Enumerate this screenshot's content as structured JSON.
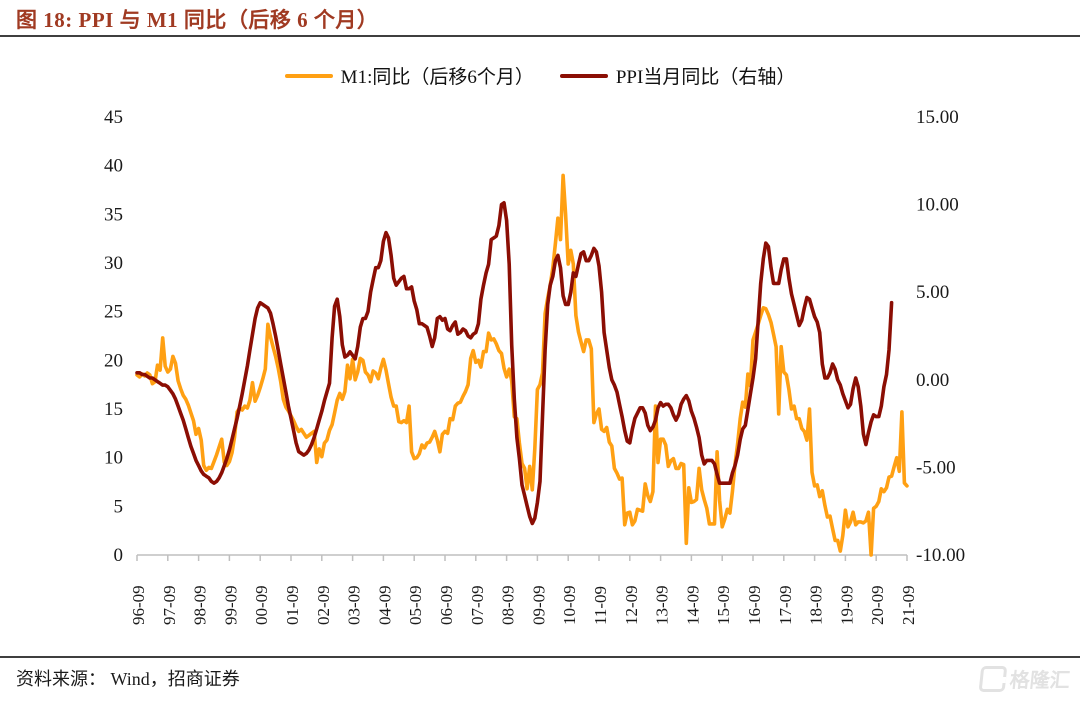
{
  "header": {
    "title": "图 18:  PPI 与 M1 同比（后移 6 个月）"
  },
  "footer": {
    "source": "资料来源： Wind，招商证券",
    "logo_text": "格隆汇"
  },
  "chart_data": {
    "type": "line",
    "title": "PPI 与 M1 同比（后移 6 个月）",
    "x_start": "1996-09",
    "x_step": "month",
    "grid": false,
    "legend_position": "top-center",
    "x_ticks": [
      "96-09",
      "97-09",
      "98-09",
      "99-09",
      "00-09",
      "01-09",
      "02-09",
      "03-09",
      "04-09",
      "05-09",
      "06-09",
      "07-09",
      "08-09",
      "09-09",
      "10-09",
      "11-09",
      "12-09",
      "13-09",
      "14-09",
      "15-09",
      "16-09",
      "17-09",
      "18-09",
      "19-09",
      "20-09",
      "21-09"
    ],
    "left_axis": {
      "min": 0,
      "max": 45,
      "tick_labels": [
        "45",
        "40",
        "35",
        "30",
        "25",
        "20",
        "15",
        "10",
        "5",
        "0"
      ]
    },
    "right_axis": {
      "min": -10,
      "max": 15,
      "tick_labels": [
        "15.00",
        "10.00",
        "5.00",
        "0.00",
        "-5.00",
        "-10.00"
      ]
    },
    "series": [
      {
        "name": "M1:同比（后移6个月）",
        "axis": "left",
        "color": "#FFA013",
        "values": [
          18.5,
          18.3,
          18.6,
          18.4,
          18.7,
          18.5,
          17.6,
          17.8,
          19.5,
          19.0,
          22.3,
          19.4,
          18.8,
          19.1,
          20.4,
          19.7,
          17.9,
          17.1,
          16.4,
          16.0,
          15.4,
          14.6,
          13.8,
          12.4,
          13.0,
          11.8,
          9.2,
          8.7,
          9.0,
          8.9,
          9.6,
          10.3,
          11.1,
          11.9,
          9.5,
          9.2,
          9.6,
          10.5,
          12.1,
          14.7,
          15.1,
          14.9,
          15.3,
          15.1,
          15.9,
          17.7,
          15.8,
          16.4,
          17.2,
          18.1,
          19.1,
          23.7,
          22.4,
          21.4,
          20.4,
          19.2,
          17.8,
          16.0,
          15.2,
          14.8,
          14.3,
          13.8,
          13.2,
          12.7,
          12.9,
          12.5,
          12.1,
          12.3,
          12.5,
          12.7,
          9.5,
          10.9,
          10.1,
          11.5,
          11.8,
          12.8,
          13.4,
          14.6,
          15.9,
          16.6,
          16.0,
          16.8,
          19.5,
          18.1,
          20.1,
          18.0,
          18.8,
          20.2,
          20.0,
          18.8,
          18.5,
          17.8,
          18.9,
          18.7,
          18.1,
          19.2,
          20.1,
          19.0,
          17.6,
          16.2,
          15.3,
          15.3,
          13.7,
          13.6,
          13.8,
          13.6,
          15.3,
          10.6,
          9.9,
          10.0,
          10.4,
          11.3,
          11.0,
          11.5,
          11.6,
          12.1,
          12.7,
          11.8,
          10.6,
          12.4,
          12.7,
          12.5,
          14.0,
          13.9,
          15.3,
          15.6,
          15.7,
          16.3,
          16.8,
          17.5,
          20.2,
          21.0,
          19.8,
          20.0,
          19.3,
          20.9,
          20.9,
          22.8,
          22.1,
          22.2,
          21.7,
          21.0,
          20.7,
          19.2,
          18.3,
          19.1,
          17.9,
          14.2,
          14.0,
          11.5,
          9.4,
          8.9,
          6.8,
          9.1,
          6.7,
          10.9,
          17.0,
          17.5,
          18.7,
          24.8,
          26.4,
          27.7,
          29.5,
          32.0,
          34.6,
          32.4,
          39.0,
          35.0,
          29.9,
          31.3,
          29.9,
          24.6,
          22.9,
          21.9,
          20.9,
          22.1,
          22.1,
          21.2,
          13.6,
          14.5,
          15.0,
          12.9,
          12.7,
          13.1,
          11.6,
          11.2,
          8.9,
          8.4,
          7.8,
          7.9,
          3.1,
          4.3,
          4.4,
          3.1,
          3.5,
          4.7,
          4.6,
          4.5,
          7.3,
          6.1,
          5.5,
          6.5,
          15.3,
          9.5,
          11.9,
          11.9,
          11.3,
          9.1,
          9.7,
          9.9,
          8.9,
          8.9,
          9.4,
          9.3,
          1.2,
          6.9,
          5.4,
          5.5,
          5.7,
          8.9,
          6.7,
          5.7,
          4.8,
          3.2,
          3.2,
          3.2,
          10.6,
          5.6,
          2.9,
          3.7,
          4.7,
          4.3,
          6.6,
          9.3,
          11.4,
          14.0,
          15.7,
          15.2,
          18.6,
          17.4,
          22.1,
          22.9,
          23.7,
          24.6,
          25.4,
          25.3,
          24.7,
          23.9,
          22.7,
          21.4,
          14.5,
          21.4,
          18.8,
          18.5,
          17.0,
          15.0,
          15.3,
          14.0,
          14.0,
          13.0,
          12.7,
          11.8,
          15.0,
          8.5,
          7.1,
          7.2,
          6.0,
          6.6,
          5.1,
          3.9,
          4.0,
          2.7,
          1.5,
          1.5,
          0.4,
          2.0,
          4.6,
          2.9,
          3.4,
          4.4,
          3.1,
          3.4,
          3.4,
          3.3,
          3.5,
          4.4,
          0.0,
          4.8,
          5.0,
          5.5,
          6.8,
          6.5,
          6.9,
          8.0,
          8.1,
          9.1,
          10.0,
          8.6,
          14.7,
          7.4,
          7.1
        ]
      },
      {
        "name": "PPI当月同比（右轴）",
        "axis": "right",
        "color": "#8B0E04",
        "values": [
          0.4,
          0.4,
          0.3,
          0.3,
          0.2,
          0.1,
          0.1,
          0.0,
          -0.1,
          -0.2,
          -0.3,
          -0.3,
          -0.4,
          -0.6,
          -0.8,
          -1.1,
          -1.5,
          -1.9,
          -2.3,
          -2.8,
          -3.3,
          -3.8,
          -4.2,
          -4.6,
          -4.9,
          -5.2,
          -5.4,
          -5.5,
          -5.6,
          -5.8,
          -5.9,
          -5.8,
          -5.6,
          -5.3,
          -4.9,
          -4.5,
          -4.0,
          -3.4,
          -2.8,
          -2.2,
          -1.5,
          -0.8,
          0.0,
          0.8,
          1.7,
          2.6,
          3.5,
          4.1,
          4.4,
          4.3,
          4.2,
          4.1,
          3.8,
          3.2,
          2.5,
          1.7,
          0.9,
          0.1,
          -0.7,
          -1.5,
          -2.2,
          -2.9,
          -3.6,
          -4.1,
          -4.2,
          -4.3,
          -4.2,
          -4.0,
          -3.7,
          -3.3,
          -2.8,
          -2.3,
          -1.8,
          -1.2,
          -0.7,
          -0.2,
          2.4,
          4.2,
          4.6,
          3.6,
          2.0,
          1.3,
          1.4,
          1.6,
          1.4,
          1.2,
          1.9,
          3.0,
          3.5,
          3.5,
          3.9,
          5.0,
          5.7,
          6.4,
          6.4,
          6.8,
          7.9,
          8.4,
          8.1,
          7.1,
          5.8,
          5.4,
          5.6,
          5.8,
          5.9,
          5.2,
          5.2,
          5.3,
          4.5,
          4.0,
          3.2,
          3.2,
          3.1,
          3.0,
          2.5,
          1.9,
          2.4,
          3.5,
          3.6,
          3.4,
          3.5,
          2.9,
          2.8,
          3.1,
          3.3,
          2.6,
          2.7,
          2.9,
          2.8,
          2.5,
          2.4,
          2.6,
          2.7,
          3.2,
          4.6,
          5.4,
          6.1,
          6.6,
          8.0,
          8.1,
          8.2,
          8.8,
          10.0,
          10.1,
          9.1,
          6.6,
          2.0,
          -1.1,
          -3.3,
          -4.5,
          -6.0,
          -6.6,
          -7.2,
          -7.8,
          -8.2,
          -7.9,
          -7.0,
          -5.8,
          -2.1,
          1.7,
          4.3,
          5.4,
          5.9,
          6.8,
          7.1,
          6.4,
          4.8,
          4.3,
          4.3,
          5.0,
          6.1,
          5.9,
          6.6,
          7.2,
          7.3,
          6.8,
          6.8,
          7.1,
          7.5,
          7.3,
          6.5,
          5.0,
          2.7,
          1.7,
          0.7,
          0.0,
          -0.3,
          -0.7,
          -1.4,
          -2.1,
          -2.9,
          -3.5,
          -3.6,
          -2.8,
          -2.2,
          -1.9,
          -1.6,
          -1.6,
          -1.9,
          -2.6,
          -2.9,
          -2.7,
          -2.3,
          -1.6,
          -1.3,
          -1.5,
          -1.4,
          -1.4,
          -1.6,
          -2.0,
          -2.3,
          -2.0,
          -1.4,
          -1.1,
          -0.9,
          -1.2,
          -1.8,
          -2.2,
          -2.7,
          -3.3,
          -4.3,
          -4.8,
          -4.6,
          -4.6,
          -4.6,
          -4.8,
          -5.4,
          -5.9,
          -5.9,
          -5.9,
          -5.9,
          -5.9,
          -5.3,
          -4.9,
          -4.3,
          -3.4,
          -2.8,
          -2.6,
          -1.7,
          -0.8,
          0.1,
          1.2,
          3.3,
          5.5,
          6.9,
          7.8,
          7.6,
          6.4,
          5.5,
          5.5,
          5.5,
          6.3,
          6.9,
          6.9,
          5.8,
          4.9,
          4.3,
          3.7,
          3.1,
          3.4,
          4.1,
          4.7,
          4.6,
          4.1,
          3.6,
          3.3,
          2.7,
          0.9,
          0.1,
          0.1,
          0.4,
          0.9,
          0.6,
          0.0,
          -0.3,
          -0.8,
          -1.2,
          -1.6,
          -1.4,
          -0.5,
          0.1,
          -0.4,
          -1.5,
          -3.1,
          -3.7,
          -3.0,
          -2.4,
          -2.0,
          -2.1,
          -2.1,
          -1.5,
          -0.4,
          0.3,
          1.7,
          4.4
        ]
      }
    ]
  }
}
